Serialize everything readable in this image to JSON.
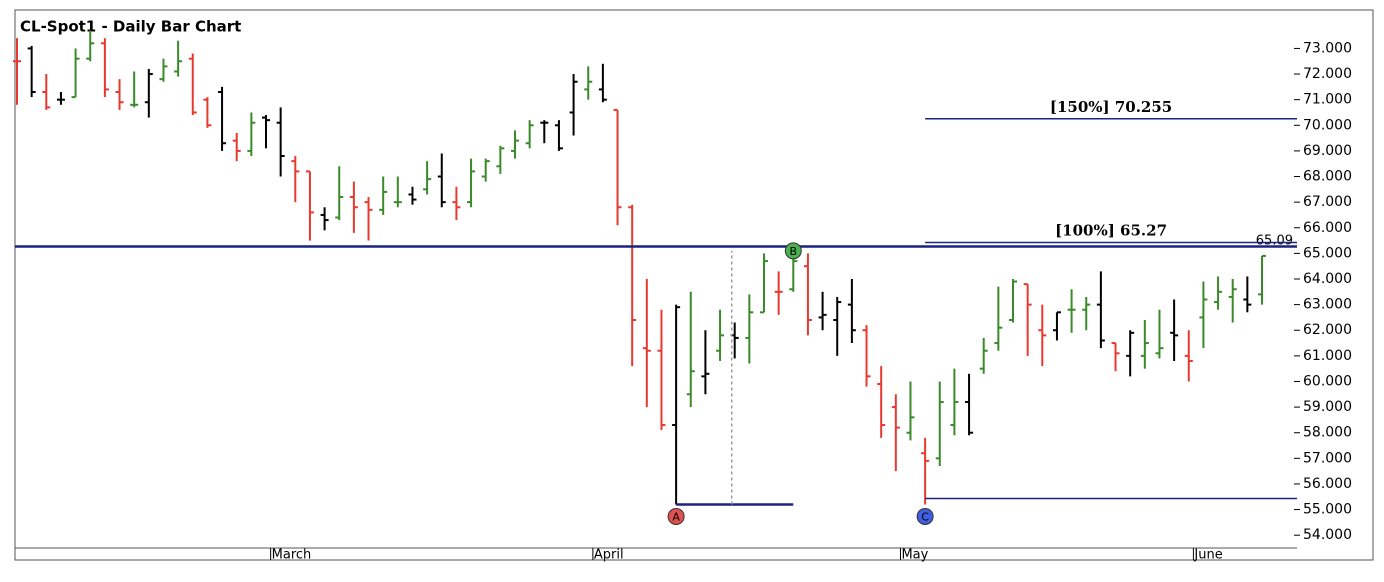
{
  "chart_data": {
    "type": "ohlc",
    "title": "CL-Spot1 - Daily Bar Chart",
    "categories": [
      null,
      null,
      null,
      null,
      null,
      null,
      null,
      null,
      null,
      null,
      null,
      null,
      null,
      null,
      null,
      null,
      null,
      null,
      "March",
      null,
      null,
      null,
      null,
      null,
      null,
      null,
      null,
      null,
      null,
      null,
      null,
      null,
      null,
      null,
      null,
      null,
      null,
      null,
      null,
      null,
      "April",
      null,
      null,
      null,
      null,
      null,
      null,
      null,
      null,
      null,
      null,
      null,
      null,
      null,
      null,
      null,
      null,
      null,
      null,
      null,
      null,
      "May",
      null,
      null,
      null,
      null,
      null,
      null,
      null,
      null,
      null,
      null,
      null,
      null,
      null,
      null,
      null,
      null,
      null,
      null,
      null,
      "June",
      null,
      null,
      null,
      null
    ],
    "open": [
      72.5,
      73.0,
      71.3,
      71.0,
      71.1,
      72.6,
      73.2,
      71.3,
      70.8,
      70.9,
      71.8,
      72.1,
      72.6,
      71.0,
      71.3,
      69.4,
      69.0,
      70.3,
      70.1,
      68.6,
      68.2,
      66.5,
      66.4,
      67.2,
      67.0,
      66.7,
      67.0,
      67.3,
      67.5,
      68.0,
      67.0,
      67.0,
      68.0,
      68.4,
      69.0,
      69.3,
      70.1,
      70.0,
      70.5,
      71.4,
      71.4,
      70.6,
      66.8,
      61.3,
      61.2,
      58.3,
      59.5,
      60.2,
      61.2,
      61.8,
      61.7,
      62.7,
      63.5,
      63.6,
      64.5,
      62.5,
      62.4,
      63.0,
      62.0,
      59.9,
      59.0,
      58.0,
      57.2,
      57.0,
      58.3,
      59.2,
      60.5,
      61.5,
      62.4,
      63.8,
      62.0,
      62.0,
      62.8,
      62.8,
      63.0,
      61.5,
      61.0,
      61.0,
      61.1,
      61.9,
      61.0,
      62.5,
      63.1,
      63.3,
      63.2,
      63.4
    ],
    "high": [
      73.4,
      73.1,
      72.0,
      71.3,
      73.0,
      73.7,
      73.4,
      71.8,
      72.1,
      72.2,
      72.6,
      73.3,
      72.8,
      71.1,
      71.5,
      69.7,
      70.5,
      70.4,
      70.7,
      68.8,
      68.2,
      66.8,
      68.4,
      67.8,
      67.2,
      68.0,
      68.0,
      67.6,
      68.6,
      68.9,
      67.6,
      68.7,
      68.7,
      69.2,
      69.8,
      70.2,
      70.2,
      70.2,
      72.0,
      72.3,
      72.4,
      70.6,
      66.9,
      64.0,
      62.8,
      63.0,
      63.5,
      62.0,
      62.8,
      62.3,
      63.4,
      65.0,
      64.3,
      65.1,
      65.0,
      63.5,
      63.3,
      64.0,
      62.2,
      60.6,
      59.5,
      60.0,
      57.8,
      60.0,
      60.5,
      60.3,
      61.7,
      63.7,
      64.0,
      63.8,
      63.0,
      62.7,
      63.6,
      63.3,
      64.3,
      61.5,
      62.0,
      62.4,
      62.8,
      63.2,
      62.0,
      63.9,
      64.1,
      64.0,
      64.1,
      64.9
    ],
    "low": [
      70.8,
      71.1,
      70.6,
      70.8,
      71.1,
      72.5,
      71.1,
      70.6,
      70.7,
      70.3,
      71.7,
      71.9,
      70.4,
      69.9,
      69.0,
      68.6,
      68.8,
      69.1,
      68.0,
      67.0,
      65.5,
      65.9,
      66.3,
      65.8,
      65.5,
      66.5,
      66.8,
      66.9,
      67.3,
      66.8,
      66.3,
      66.8,
      67.8,
      68.1,
      68.7,
      69.1,
      69.3,
      69.0,
      69.6,
      71.0,
      70.9,
      66.1,
      60.6,
      59.0,
      58.1,
      55.2,
      59.0,
      59.5,
      60.8,
      60.9,
      60.7,
      62.7,
      62.6,
      63.5,
      61.8,
      62.0,
      61.0,
      61.5,
      59.8,
      57.8,
      56.5,
      57.7,
      55.2,
      56.7,
      57.9,
      57.9,
      60.3,
      61.2,
      62.3,
      61.0,
      60.6,
      61.6,
      61.9,
      62.0,
      61.3,
      60.4,
      60.2,
      60.5,
      60.9,
      60.8,
      60.0,
      61.3,
      62.8,
      62.3,
      62.7,
      63.0
    ],
    "close": [
      72.5,
      71.3,
      70.7,
      71.0,
      72.6,
      73.2,
      71.4,
      70.9,
      70.8,
      72.0,
      72.3,
      72.5,
      70.5,
      70.0,
      69.3,
      69.0,
      70.1,
      70.2,
      68.8,
      68.2,
      66.6,
      66.3,
      67.2,
      66.8,
      66.7,
      67.4,
      67.0,
      67.1,
      67.9,
      67.0,
      66.8,
      68.2,
      68.6,
      69.1,
      69.4,
      70.0,
      70.1,
      69.1,
      71.7,
      71.7,
      71.0,
      66.8,
      62.4,
      61.2,
      58.3,
      62.9,
      60.4,
      60.3,
      61.8,
      61.7,
      62.7,
      64.7,
      63.5,
      64.7,
      62.4,
      62.6,
      63.1,
      62.0,
      60.2,
      58.3,
      58.2,
      58.6,
      56.9,
      59.2,
      59.2,
      58.0,
      61.2,
      62.1,
      63.9,
      63.0,
      61.8,
      62.7,
      62.8,
      63.0,
      61.6,
      61.1,
      61.9,
      61.5,
      61.3,
      61.8,
      60.8,
      63.2,
      63.5,
      63.6,
      63.0,
      64.9
    ],
    "bar_colors": [
      "#e8392f",
      "#000000",
      "#e8392f",
      "#000000",
      "#3a8a2a",
      "#3a8a2a",
      "#e8392f",
      "#e8392f",
      "#3a8a2a",
      "#000000",
      "#3a8a2a",
      "#3a8a2a",
      "#e8392f",
      "#e8392f",
      "#000000",
      "#e8392f",
      "#3a8a2a",
      "#000000",
      "#000000",
      "#e8392f",
      "#e8392f",
      "#000000",
      "#3a8a2a",
      "#e8392f",
      "#e8392f",
      "#3a8a2a",
      "#3a8a2a",
      "#000000",
      "#3a8a2a",
      "#000000",
      "#e8392f",
      "#3a8a2a",
      "#3a8a2a",
      "#3a8a2a",
      "#3a8a2a",
      "#3a8a2a",
      "#000000",
      "#000000",
      "#000000",
      "#3a8a2a",
      "#000000",
      "#e8392f",
      "#e8392f",
      "#e8392f",
      "#e8392f",
      "#000000",
      "#3a8a2a",
      "#000000",
      "#3a8a2a",
      "#000000",
      "#3a8a2a",
      "#3a8a2a",
      "#e8392f",
      "#3a8a2a",
      "#e8392f",
      "#000000",
      "#000000",
      "#000000",
      "#e8392f",
      "#e8392f",
      "#e8392f",
      "#3a8a2a",
      "#e8392f",
      "#3a8a2a",
      "#3a8a2a",
      "#000000",
      "#3a8a2a",
      "#3a8a2a",
      "#3a8a2a",
      "#e8392f",
      "#e8392f",
      "#000000",
      "#3a8a2a",
      "#3a8a2a",
      "#000000",
      "#e8392f",
      "#000000",
      "#3a8a2a",
      "#3a8a2a",
      "#000000",
      "#e8392f",
      "#3a8a2a",
      "#3a8a2a",
      "#3a8a2a",
      "#000000",
      "#3a8a2a"
    ],
    "ylim": [
      53.5,
      74.5
    ],
    "yticks": [
      {
        "value": 54,
        "label": "54.000"
      },
      {
        "value": 55,
        "label": "55.000"
      },
      {
        "value": 56,
        "label": "56.000"
      },
      {
        "value": 57,
        "label": "57.000"
      },
      {
        "value": 58,
        "label": "58.000"
      },
      {
        "value": 59,
        "label": "59.000"
      },
      {
        "value": 60,
        "label": "60.000"
      },
      {
        "value": 61,
        "label": "61.000"
      },
      {
        "value": 62,
        "label": "62.000"
      },
      {
        "value": 63,
        "label": "63.000"
      },
      {
        "value": 64,
        "label": "64.000"
      },
      {
        "value": 65,
        "label": "65.000"
      },
      {
        "value": 66,
        "label": "66.000"
      },
      {
        "value": 67,
        "label": "67.000"
      },
      {
        "value": 68,
        "label": "68.000"
      },
      {
        "value": 69,
        "label": "69.000"
      },
      {
        "value": 70,
        "label": "70.000"
      },
      {
        "value": 71,
        "label": "71.000"
      },
      {
        "value": 72,
        "label": "72.000"
      },
      {
        "value": 73,
        "label": "73.000"
      }
    ],
    "levels": [
      {
        "label": "[150%] 70.255",
        "value": 70.255
      },
      {
        "label": "[100%] 65.27",
        "value": 65.27
      }
    ],
    "level_color": "#1a237e",
    "last_price": 65.09,
    "pivots": [
      {
        "label": "A",
        "at": 45,
        "value": 55.2,
        "color": "#e05050"
      },
      {
        "label": "B",
        "at": 53,
        "value": 65.1,
        "color": "#4caf50"
      },
      {
        "label": "C",
        "at": 62,
        "value": 55.2,
        "color": "#3f5fe0"
      }
    ]
  }
}
